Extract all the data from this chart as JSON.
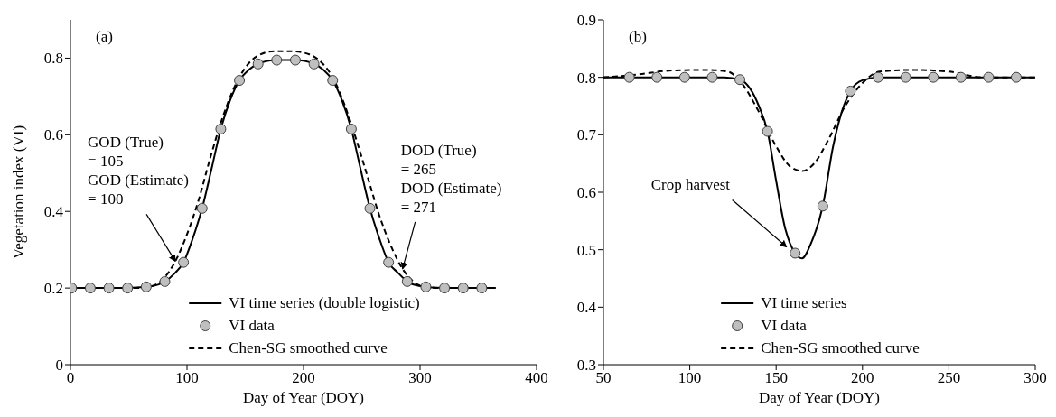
{
  "chart_data": [
    {
      "type": "line",
      "title": "(a)",
      "xlabel": "Day of Year (DOY)",
      "ylabel": "Vegetation index (VI)",
      "xlim": [
        0,
        400
      ],
      "xticks": [
        0,
        100,
        200,
        300,
        400
      ],
      "ylim": [
        0,
        0.9
      ],
      "yticks": [
        0,
        0.2,
        0.4,
        0.6,
        0.8
      ],
      "grid": false,
      "legend": "bottom",
      "annotations": [
        {
          "text": "GOD (True)\n= 105\nGOD (Estimate)\n= 100",
          "x": 90,
          "y": 0.27
        },
        {
          "text": "DOD (True)\n= 265\nDOD (Estimate)\n= 271",
          "x": 285,
          "y": 0.25
        }
      ],
      "series": [
        {
          "name": "VI time series (double logistic)",
          "color": "#000000",
          "line_style": "solid",
          "marker": "none",
          "x": [
            0,
            40,
            60,
            70,
            80,
            90,
            97,
            105,
            113,
            121,
            129,
            137,
            145,
            153,
            161,
            177,
            193,
            209,
            217,
            225,
            233,
            241,
            249,
            257,
            265,
            273,
            281,
            289,
            300,
            320,
            365
          ],
          "values": [
            0.2,
            0.2,
            0.202,
            0.205,
            0.215,
            0.24,
            0.267,
            0.33,
            0.408,
            0.51,
            0.615,
            0.69,
            0.742,
            0.77,
            0.785,
            0.795,
            0.795,
            0.785,
            0.77,
            0.742,
            0.69,
            0.615,
            0.51,
            0.408,
            0.33,
            0.267,
            0.24,
            0.217,
            0.205,
            0.2,
            0.2
          ]
        },
        {
          "name": "VI data",
          "type": "scatter",
          "color": "#bfbfbf",
          "marker": "circle",
          "x": [
            1,
            17,
            33,
            49,
            65,
            81,
            97,
            113,
            129,
            145,
            161,
            177,
            193,
            209,
            225,
            241,
            257,
            273,
            289,
            305,
            321,
            337,
            353
          ],
          "values": [
            0.2,
            0.2,
            0.2,
            0.2,
            0.203,
            0.217,
            0.267,
            0.408,
            0.615,
            0.742,
            0.785,
            0.795,
            0.795,
            0.785,
            0.742,
            0.615,
            0.408,
            0.267,
            0.217,
            0.203,
            0.2,
            0.2,
            0.2
          ]
        },
        {
          "name": "Chen-SG  smoothed curve",
          "color": "#000000",
          "line_style": "dashed",
          "marker": "none",
          "x": [
            0,
            60,
            70,
            80,
            90,
            100,
            110,
            120,
            130,
            140,
            150,
            160,
            175,
            190,
            205,
            215,
            225,
            235,
            245,
            255,
            265,
            275,
            285,
            295,
            305,
            320,
            365
          ],
          "values": [
            0.2,
            0.2,
            0.205,
            0.225,
            0.27,
            0.34,
            0.43,
            0.54,
            0.64,
            0.72,
            0.775,
            0.805,
            0.818,
            0.818,
            0.81,
            0.79,
            0.75,
            0.68,
            0.59,
            0.49,
            0.39,
            0.31,
            0.25,
            0.215,
            0.203,
            0.2,
            0.2
          ]
        }
      ]
    },
    {
      "type": "line",
      "title": "(b)",
      "xlabel": "Day of Year (DOY)",
      "xlim": [
        50,
        300
      ],
      "xticks": [
        50,
        100,
        150,
        200,
        250,
        300
      ],
      "ylim": [
        0.3,
        0.9
      ],
      "yticks": [
        0.3,
        0.4,
        0.5,
        0.6,
        0.7,
        0.8,
        0.9
      ],
      "grid": false,
      "legend": "bottom",
      "annotations": [
        {
          "text": "Crop harvest",
          "x": 156,
          "y": 0.505
        }
      ],
      "series": [
        {
          "name": "VI time series",
          "color": "#000000",
          "line_style": "solid",
          "marker": "none",
          "x": [
            50,
            120,
            129,
            135,
            140,
            145,
            150,
            155,
            161,
            165,
            170,
            177,
            183,
            188,
            193,
            200,
            210,
            300
          ],
          "values": [
            0.8,
            0.8,
            0.796,
            0.78,
            0.75,
            0.706,
            0.62,
            0.54,
            0.494,
            0.485,
            0.51,
            0.576,
            0.68,
            0.74,
            0.776,
            0.795,
            0.8,
            0.8
          ]
        },
        {
          "name": "VI data",
          "type": "scatter",
          "color": "#bfbfbf",
          "marker": "circle",
          "x": [
            65,
            81,
            97,
            113,
            129,
            145,
            161,
            177,
            193,
            209,
            225,
            241,
            257,
            273,
            289
          ],
          "values": [
            0.8,
            0.8,
            0.8,
            0.8,
            0.796,
            0.706,
            0.494,
            0.576,
            0.776,
            0.8,
            0.8,
            0.8,
            0.8,
            0.8,
            0.8
          ]
        },
        {
          "name": "Chen-SG  smoothed curve",
          "color": "#000000",
          "line_style": "dashed",
          "marker": "none",
          "x": [
            50,
            70,
            90,
            110,
            122,
            130,
            140,
            150,
            158,
            165,
            172,
            180,
            190,
            200,
            210,
            230,
            250,
            270,
            290,
            300
          ],
          "values": [
            0.8,
            0.805,
            0.812,
            0.813,
            0.81,
            0.79,
            0.74,
            0.68,
            0.645,
            0.637,
            0.65,
            0.69,
            0.75,
            0.79,
            0.81,
            0.813,
            0.81,
            0.8,
            0.8,
            0.8
          ]
        }
      ]
    }
  ]
}
